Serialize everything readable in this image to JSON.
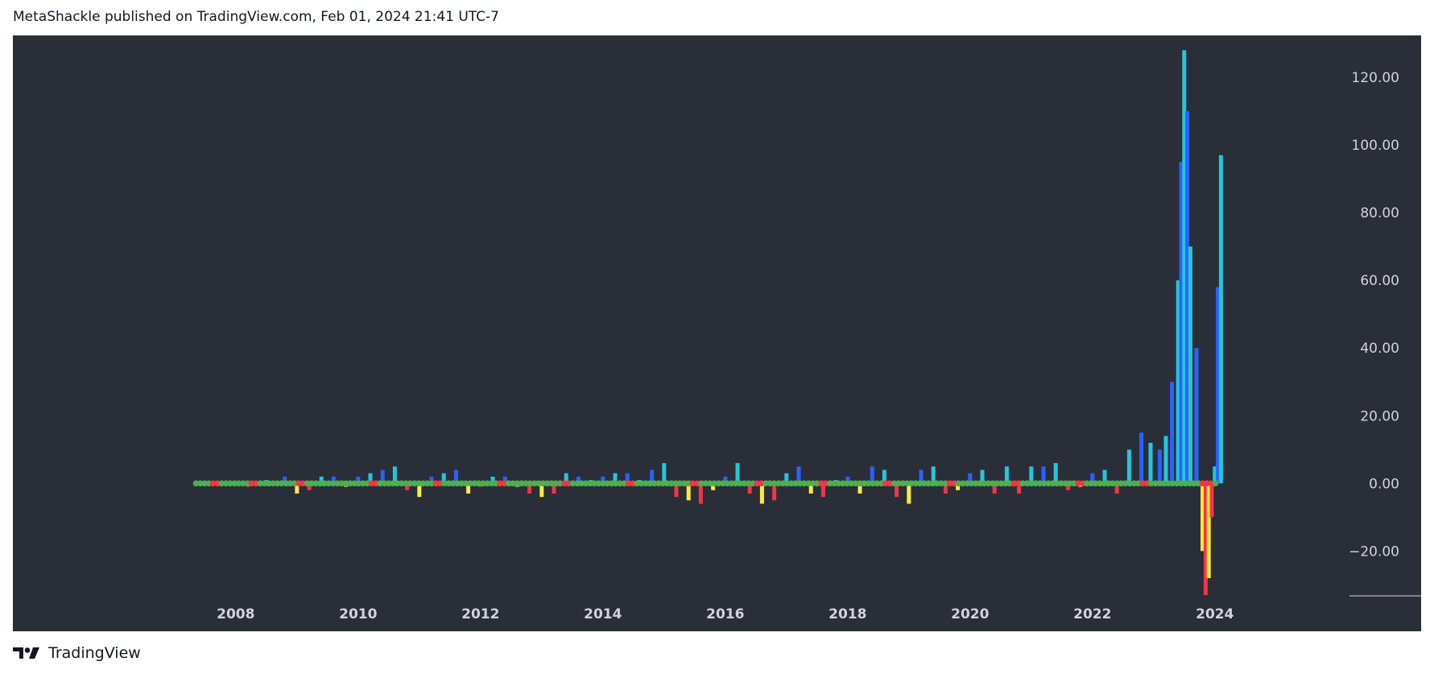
{
  "header": {
    "publisher_line": "MetaShackle published on TradingView.com, Feb 01, 2024 21:41 UTC-7"
  },
  "footer": {
    "brand_icon": "tradingview-logo-icon",
    "brand": "TradingView"
  },
  "colors": {
    "background": "#2a2e39",
    "axis_text": "#d1d4dc",
    "positive_bar_cyan": "#26c6da",
    "positive_bar_blue": "#2962ff",
    "negative_bar_yellow": "#ffeb3b",
    "negative_bar_red": "#f23645",
    "dot_green": "#4caf50",
    "dot_red": "#f23645"
  },
  "chart_data": {
    "type": "bar",
    "title": "",
    "xlabel": "",
    "ylabel": "",
    "x_ticks": [
      "2008",
      "2010",
      "2012",
      "2014",
      "2016",
      "2018",
      "2020",
      "2022",
      "2024"
    ],
    "y_ticks": [
      "120.00",
      "100.00",
      "80.00",
      "60.00",
      "40.00",
      "20.00",
      "0.00",
      "−20.00"
    ],
    "xlim": [
      2006.2,
      2026.2
    ],
    "ylim": [
      -33,
      130
    ],
    "grid": false,
    "legend": "none",
    "zero_line_dots": "green/red dots along 0.00 line",
    "series": [
      {
        "values_note": "histogram bars, approximate readings",
        "x": [
          2007.3,
          2007.6,
          2007.9,
          2008.2,
          2008.5,
          2008.8,
          2009.0,
          2009.2,
          2009.4,
          2009.6,
          2009.8,
          2010.0,
          2010.2,
          2010.4,
          2010.6,
          2010.8,
          2011.0,
          2011.2,
          2011.4,
          2011.6,
          2011.8,
          2012.0,
          2012.2,
          2012.4,
          2012.6,
          2012.8,
          2013.0,
          2013.2,
          2013.4,
          2013.6,
          2013.8,
          2014.0,
          2014.2,
          2014.4,
          2014.6,
          2014.8,
          2015.0,
          2015.2,
          2015.4,
          2015.6,
          2015.8,
          2016.0,
          2016.2,
          2016.4,
          2016.6,
          2016.8,
          2017.0,
          2017.2,
          2017.4,
          2017.6,
          2017.8,
          2018.0,
          2018.2,
          2018.4,
          2018.6,
          2018.8,
          2019.0,
          2019.2,
          2019.4,
          2019.6,
          2019.8,
          2020.0,
          2020.2,
          2020.4,
          2020.6,
          2020.8,
          2021.0,
          2021.2,
          2021.4,
          2021.6,
          2021.8,
          2022.0,
          2022.2,
          2022.4,
          2022.6,
          2022.8,
          2022.95,
          2023.1,
          2023.2,
          2023.3,
          2023.4,
          2023.45,
          2023.5,
          2023.55,
          2023.6,
          2023.7,
          2023.8,
          2023.85,
          2023.9,
          2023.95,
          2024.0,
          2024.05,
          2024.1
        ],
        "y": [
          0,
          0,
          0,
          -1,
          1,
          2,
          -3,
          -2,
          2,
          2,
          -1,
          2,
          3,
          4,
          5,
          -2,
          -4,
          2,
          3,
          4,
          -3,
          -1,
          2,
          2,
          -1,
          -3,
          -4,
          -3,
          3,
          2,
          1,
          2,
          3,
          3,
          1,
          4,
          6,
          -4,
          -5,
          -6,
          -2,
          2,
          6,
          -3,
          -6,
          -5,
          3,
          5,
          -3,
          -4,
          1,
          2,
          -3,
          5,
          4,
          -4,
          -6,
          4,
          5,
          -3,
          -2,
          3,
          4,
          -3,
          5,
          -3,
          5,
          5,
          6,
          -2,
          -1,
          3,
          4,
          -3,
          10,
          15,
          12,
          10,
          14,
          30,
          60,
          95,
          128,
          110,
          70,
          40,
          -20,
          -33,
          -28,
          -10,
          5,
          58,
          97
        ]
      }
    ]
  }
}
